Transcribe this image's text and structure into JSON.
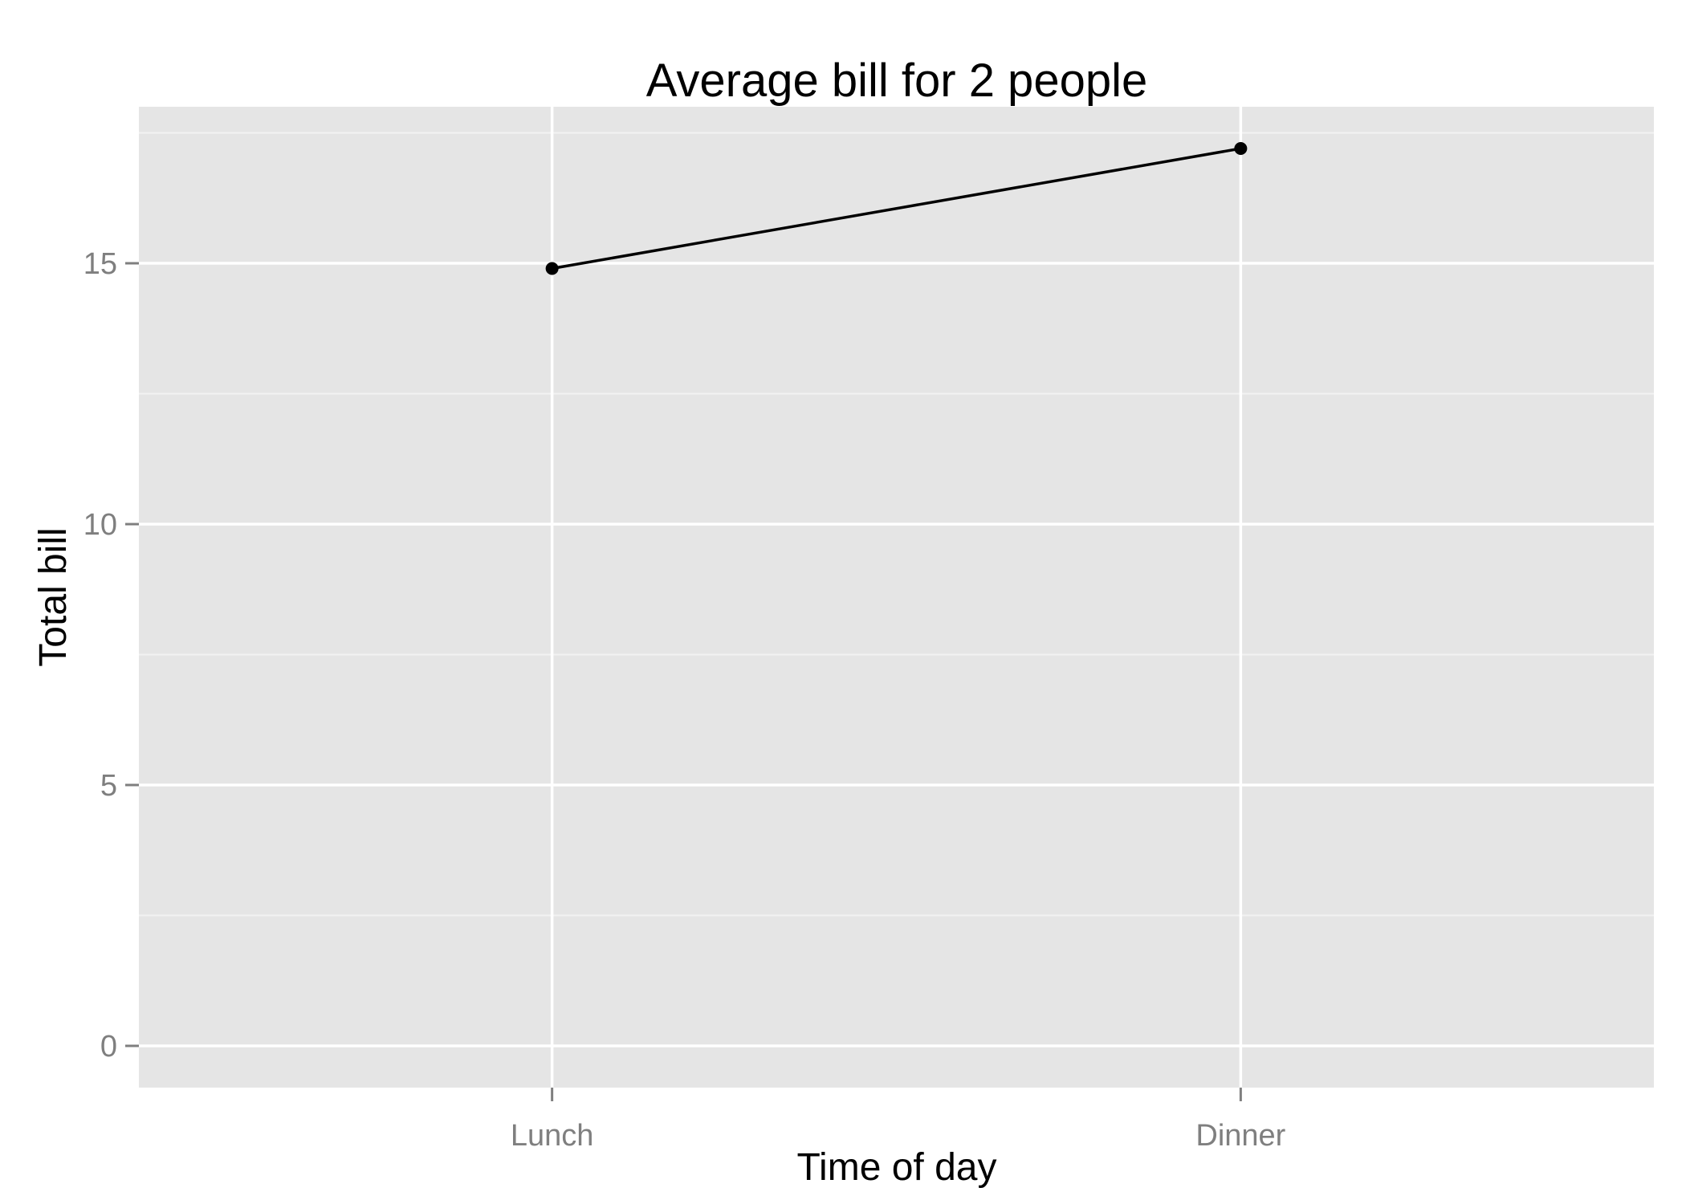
{
  "chart_data": {
    "type": "line",
    "title": "Average bill for 2 people",
    "xlabel": "Time of day",
    "ylabel": "Total bill",
    "categories": [
      "Lunch",
      "Dinner"
    ],
    "series": [
      {
        "values": [
          14.9,
          17.2
        ]
      }
    ],
    "ylim": [
      -0.8,
      18.0
    ],
    "y_ticks": [
      0,
      5,
      10,
      15
    ],
    "y_tick_labels": [
      "0",
      "5",
      "10",
      "15"
    ],
    "y_minor_ticks": [
      2.5,
      7.5,
      12.5,
      17.5
    ],
    "grid": true,
    "legend": "none",
    "colors": {
      "panel_background": "#e5e5e5",
      "grid_major": "#ffffff",
      "grid_minor": "#f2f2f2",
      "line": "#000000",
      "point": "#000000",
      "tick_label": "#7f7f7f",
      "title": "#000000"
    }
  }
}
